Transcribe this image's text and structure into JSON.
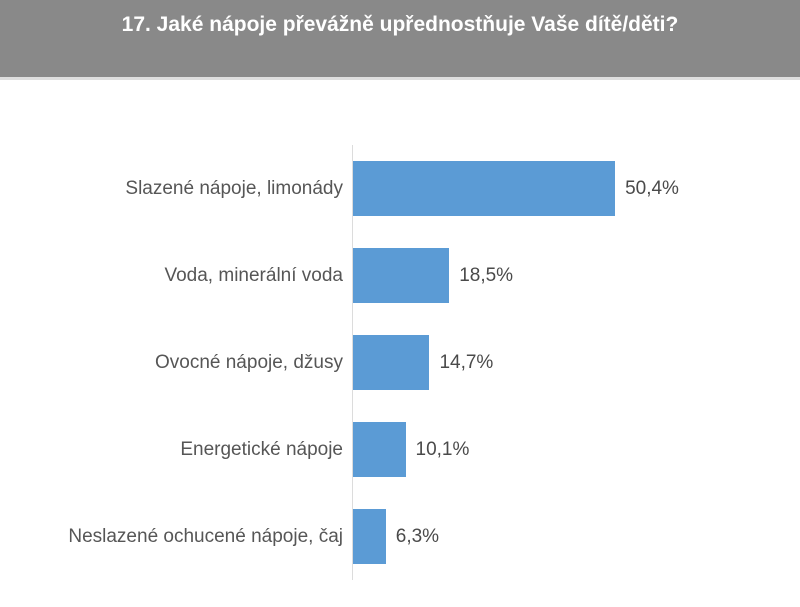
{
  "header": {
    "title": "17. Jaké nápoje převážně upřednostňuje Vaše dítě/děti?"
  },
  "colors": {
    "header_bg": "#898989",
    "header_text": "#ffffff",
    "bar": "#5b9bd5",
    "axis_line": "#dcdcdc",
    "category_text": "#565656",
    "value_text": "#4a4a4a"
  },
  "chart_data": {
    "type": "bar",
    "orientation": "horizontal",
    "title": "17. Jaké nápoje převážně upřednostňuje Vaše dítě/děti?",
    "categories": [
      "Slazené nápoje, limonády",
      "Voda, minerální voda",
      "Ovocné nápoje, džusy",
      "Energetické nápoje",
      "Neslazené ochucené nápoje, čaj"
    ],
    "values": [
      50.4,
      18.5,
      14.7,
      10.1,
      6.3
    ],
    "value_labels": [
      "50,4%",
      "18,5%",
      "14,7%",
      "10,1%",
      "6,3%"
    ],
    "xlabel": "",
    "ylabel": "",
    "xlim": [
      0,
      60
    ],
    "grid": false,
    "legend": false,
    "value_label_position": "outside-end",
    "bar_color": "#5b9bd5"
  }
}
